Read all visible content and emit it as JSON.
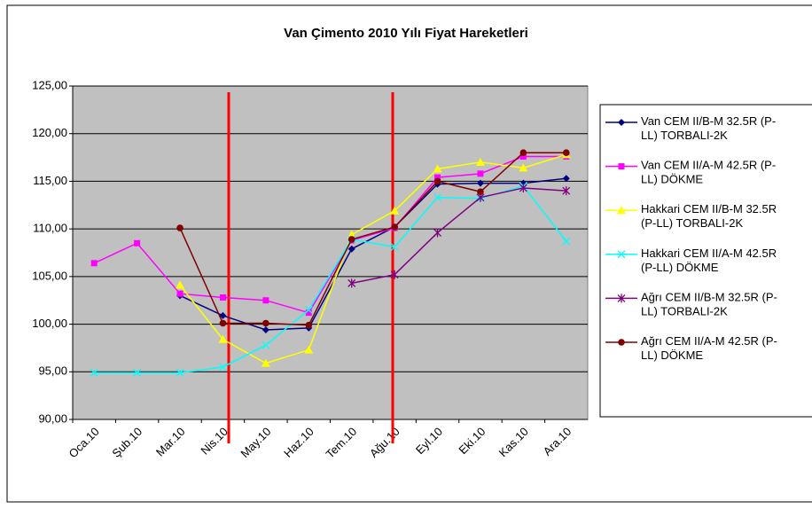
{
  "chart_data": {
    "type": "line",
    "title": "Van Çimento 2010 Yılı Fiyat Hareketleri",
    "categories": [
      "Oca.10",
      "Şub.10",
      "Mar.10",
      "Nis.10",
      "May.10",
      "Haz.10",
      "Tem.10",
      "Ağu.10",
      "Eyl.10",
      "Eki.10",
      "Kas.10",
      "Ara.10"
    ],
    "ylim": [
      90,
      125
    ],
    "yticks": [
      {
        "value": 90,
        "label": "90,00"
      },
      {
        "value": 95,
        "label": "95,00"
      },
      {
        "value": 100,
        "label": "100,00"
      },
      {
        "value": 105,
        "label": "105,00"
      },
      {
        "value": 110,
        "label": "110,00"
      },
      {
        "value": 115,
        "label": "115,00"
      },
      {
        "value": 120,
        "label": "120,00"
      },
      {
        "value": 125,
        "label": "125,00"
      }
    ],
    "grid": true,
    "legend": "right",
    "series": [
      {
        "name": "Van CEM II/B-M 32.5R (P-LL) TORBALI-2K",
        "color": "#000080",
        "marker": "diamond",
        "values": [
          null,
          null,
          103.0,
          100.9,
          99.4,
          99.6,
          107.9,
          110.2,
          114.7,
          114.8,
          114.8,
          115.3
        ]
      },
      {
        "name": "Van CEM II/A-M 42.5R (P-LL) DÖKME",
        "color": "#FF00FF",
        "marker": "square",
        "values": [
          106.4,
          108.5,
          103.2,
          102.8,
          102.5,
          101.2,
          108.8,
          110.1,
          115.4,
          115.8,
          117.6,
          117.6
        ]
      },
      {
        "name": "Hakkari CEM II/B-M 32.5R (P-LL) TORBALI-2K",
        "color": "#FFFF00",
        "marker": "triangle",
        "values": [
          null,
          null,
          104.1,
          98.4,
          95.9,
          97.3,
          109.4,
          111.9,
          116.3,
          117.0,
          116.4,
          117.8
        ]
      },
      {
        "name": "Hakkari CEM II/A-M 42.5R (P-LL) DÖKME",
        "color": "#00FFFF",
        "marker": "x",
        "values": [
          94.9,
          94.9,
          94.9,
          95.5,
          97.8,
          101.5,
          108.9,
          108.1,
          113.3,
          113.2,
          114.5,
          108.7
        ]
      },
      {
        "name": "Ağrı CEM II/B-M 32.5R (P-LL) TORBALI-2K",
        "color": "#800080",
        "marker": "star",
        "values": [
          null,
          null,
          null,
          null,
          null,
          null,
          104.3,
          105.2,
          109.6,
          113.3,
          114.3,
          114.0
        ]
      },
      {
        "name": "Ağrı CEM II/A-M 42.5R (P-LL) DÖKME",
        "color": "#800000",
        "marker": "circle",
        "values": [
          null,
          null,
          110.1,
          100.1,
          100.1,
          99.9,
          108.9,
          110.2,
          115.0,
          113.9,
          118.0,
          118.0
        ]
      }
    ]
  }
}
